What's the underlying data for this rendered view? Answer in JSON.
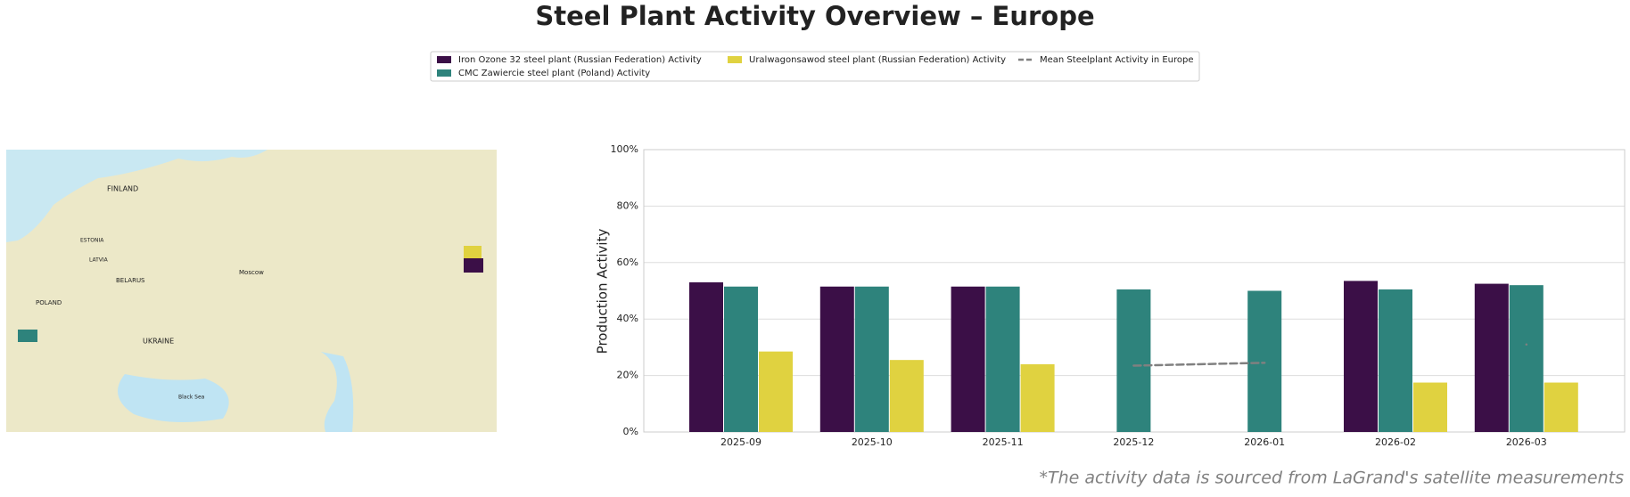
{
  "chart_data": {
    "type": "bar",
    "title": "Steel Plant Activity Overview – Europe",
    "ylabel": "Production Activity",
    "footnote": "*The activity data is sourced from LaGrand's satellite measurements",
    "categories": [
      "2025-09",
      "2025-10",
      "2025-11",
      "2025-12",
      "2026-01",
      "2026-02",
      "2026-03"
    ],
    "series": [
      {
        "name": "Iron Ozone 32 steel plant (Russian Federation) Activity",
        "color": "#3b0f47",
        "values": [
          53,
          51.5,
          51.5,
          null,
          null,
          53.5,
          52.5
        ]
      },
      {
        "name": "CMC Zawiercie steel plant (Poland) Activity",
        "color": "#2e837c",
        "values": [
          51.5,
          51.5,
          51.5,
          50.5,
          50,
          50.5,
          52
        ]
      },
      {
        "name": "Uralwagonsawod steel plant (Russian Federation) Activity",
        "color": "#e0d240",
        "values": [
          28.5,
          25.5,
          24,
          null,
          null,
          17.5,
          17.5
        ]
      }
    ],
    "mean": {
      "name": "Mean Steelplant Activity in Europe",
      "color": "#808080",
      "values": [
        null,
        null,
        null,
        23.5,
        24.5,
        null,
        31
      ]
    },
    "ylim": [
      0,
      100
    ],
    "yticks": [
      {
        "value": 0,
        "label": "0%"
      },
      {
        "value": 20,
        "label": "20%"
      },
      {
        "value": 40,
        "label": "40%"
      },
      {
        "value": 60,
        "label": "60%"
      },
      {
        "value": 80,
        "label": "80%"
      },
      {
        "value": 100,
        "label": "100%"
      }
    ],
    "grid": true
  },
  "map": {
    "labels": [
      "FINLAND",
      "UKRAINE",
      "Moscow",
      "Black Sea",
      "BELARUS",
      "ESTONIA",
      "LATVIA",
      "POLAND"
    ]
  }
}
